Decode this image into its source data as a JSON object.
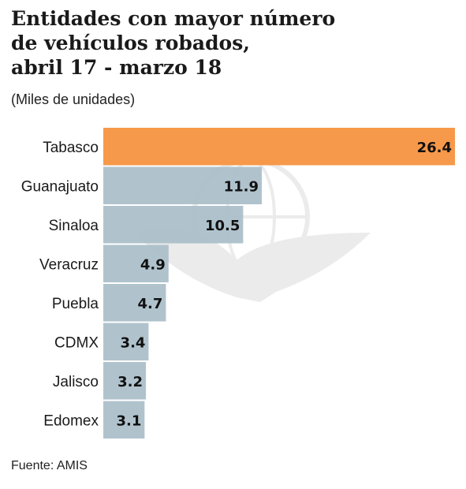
{
  "title_lines": [
    "Entidades con mayor número",
    "de vehículos robados,",
    "abril 17 - marzo 18"
  ],
  "subtitle": "(Miles de unidades)",
  "source": "Fuente: AMIS",
  "colors": {
    "highlight": "#f7994a",
    "bar": "#a9bec9",
    "watermark": "#dcdcdc"
  },
  "chart_data": {
    "type": "bar",
    "orientation": "horizontal",
    "categories": [
      "Tabasco",
      "Guanajuato",
      "Sinaloa",
      "Veracruz",
      "Puebla",
      "CDMX",
      "Jalisco",
      "Edomex"
    ],
    "values": [
      26.4,
      11.9,
      10.5,
      4.9,
      4.7,
      3.4,
      3.2,
      3.1
    ],
    "value_labels": [
      "26.4",
      "11.9",
      "10.5",
      "4.9",
      "4.7",
      "3.4",
      "3.2",
      "3.1"
    ],
    "highlight_index": 0,
    "xlim": [
      0,
      26.4
    ],
    "grid": false,
    "legend": "none"
  }
}
